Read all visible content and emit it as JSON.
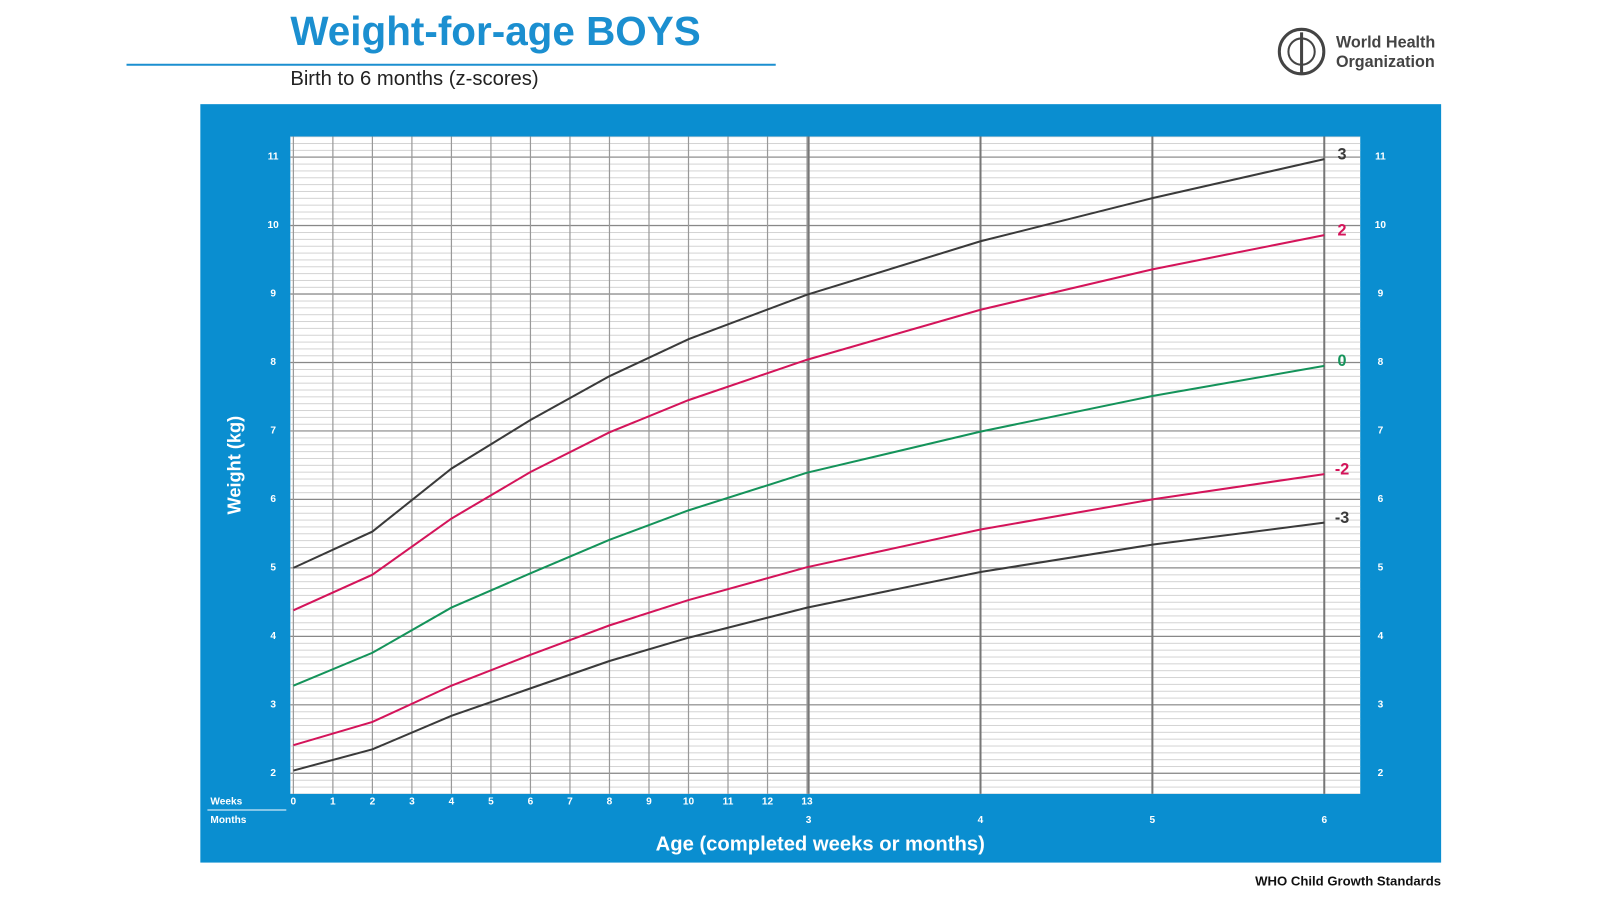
{
  "header": {
    "title": "Weight-for-age BOYS",
    "subtitle": "Birth to 6 months (z-scores)",
    "org": [
      "World Health",
      "Organization"
    ]
  },
  "footer": "WHO Child Growth Standards",
  "chart_data": {
    "type": "line",
    "y_label": "Weight (kg)",
    "x_label": "Age (completed weeks or months)",
    "x_row_labels": [
      "Weeks",
      "Months"
    ],
    "x": [
      0,
      2,
      4,
      6,
      8,
      10,
      13,
      17.39,
      21.74,
      26.09
    ],
    "xlim": [
      0,
      27
    ],
    "xticks": [
      0,
      1,
      2,
      3,
      4,
      5,
      6,
      7,
      8,
      9,
      10,
      11,
      12,
      13
    ],
    "xticks_months": [
      {
        "value": 13.04,
        "label": "3"
      },
      {
        "value": 17.39,
        "label": "4"
      },
      {
        "value": 21.74,
        "label": "5"
      },
      {
        "value": 26.09,
        "label": "6"
      }
    ],
    "ylim": [
      1.7,
      11.3
    ],
    "yticks": [
      2,
      3,
      4,
      5,
      6,
      7,
      8,
      9,
      10,
      11
    ],
    "grid": true,
    "series": [
      {
        "name": "3",
        "color": "#3a3a3a",
        "values": [
          5.0,
          5.53,
          6.45,
          7.16,
          7.8,
          8.34,
          8.99,
          9.77,
          10.4,
          10.97
        ]
      },
      {
        "name": "2",
        "color": "#d4145a",
        "values": [
          4.38,
          4.9,
          5.72,
          6.4,
          6.98,
          7.45,
          8.04,
          8.77,
          9.36,
          9.86
        ]
      },
      {
        "name": "0",
        "color": "#14935a",
        "values": [
          3.28,
          3.76,
          4.42,
          4.92,
          5.41,
          5.84,
          6.39,
          6.99,
          7.51,
          7.95
        ]
      },
      {
        "name": "-2",
        "color": "#d4145a",
        "values": [
          2.41,
          2.75,
          3.28,
          3.73,
          4.16,
          4.53,
          5.01,
          5.56,
          6.0,
          6.37
        ]
      },
      {
        "name": "-3",
        "color": "#3a3a3a",
        "values": [
          2.04,
          2.35,
          2.84,
          3.24,
          3.64,
          3.98,
          4.42,
          4.94,
          5.34,
          5.66
        ]
      }
    ]
  }
}
